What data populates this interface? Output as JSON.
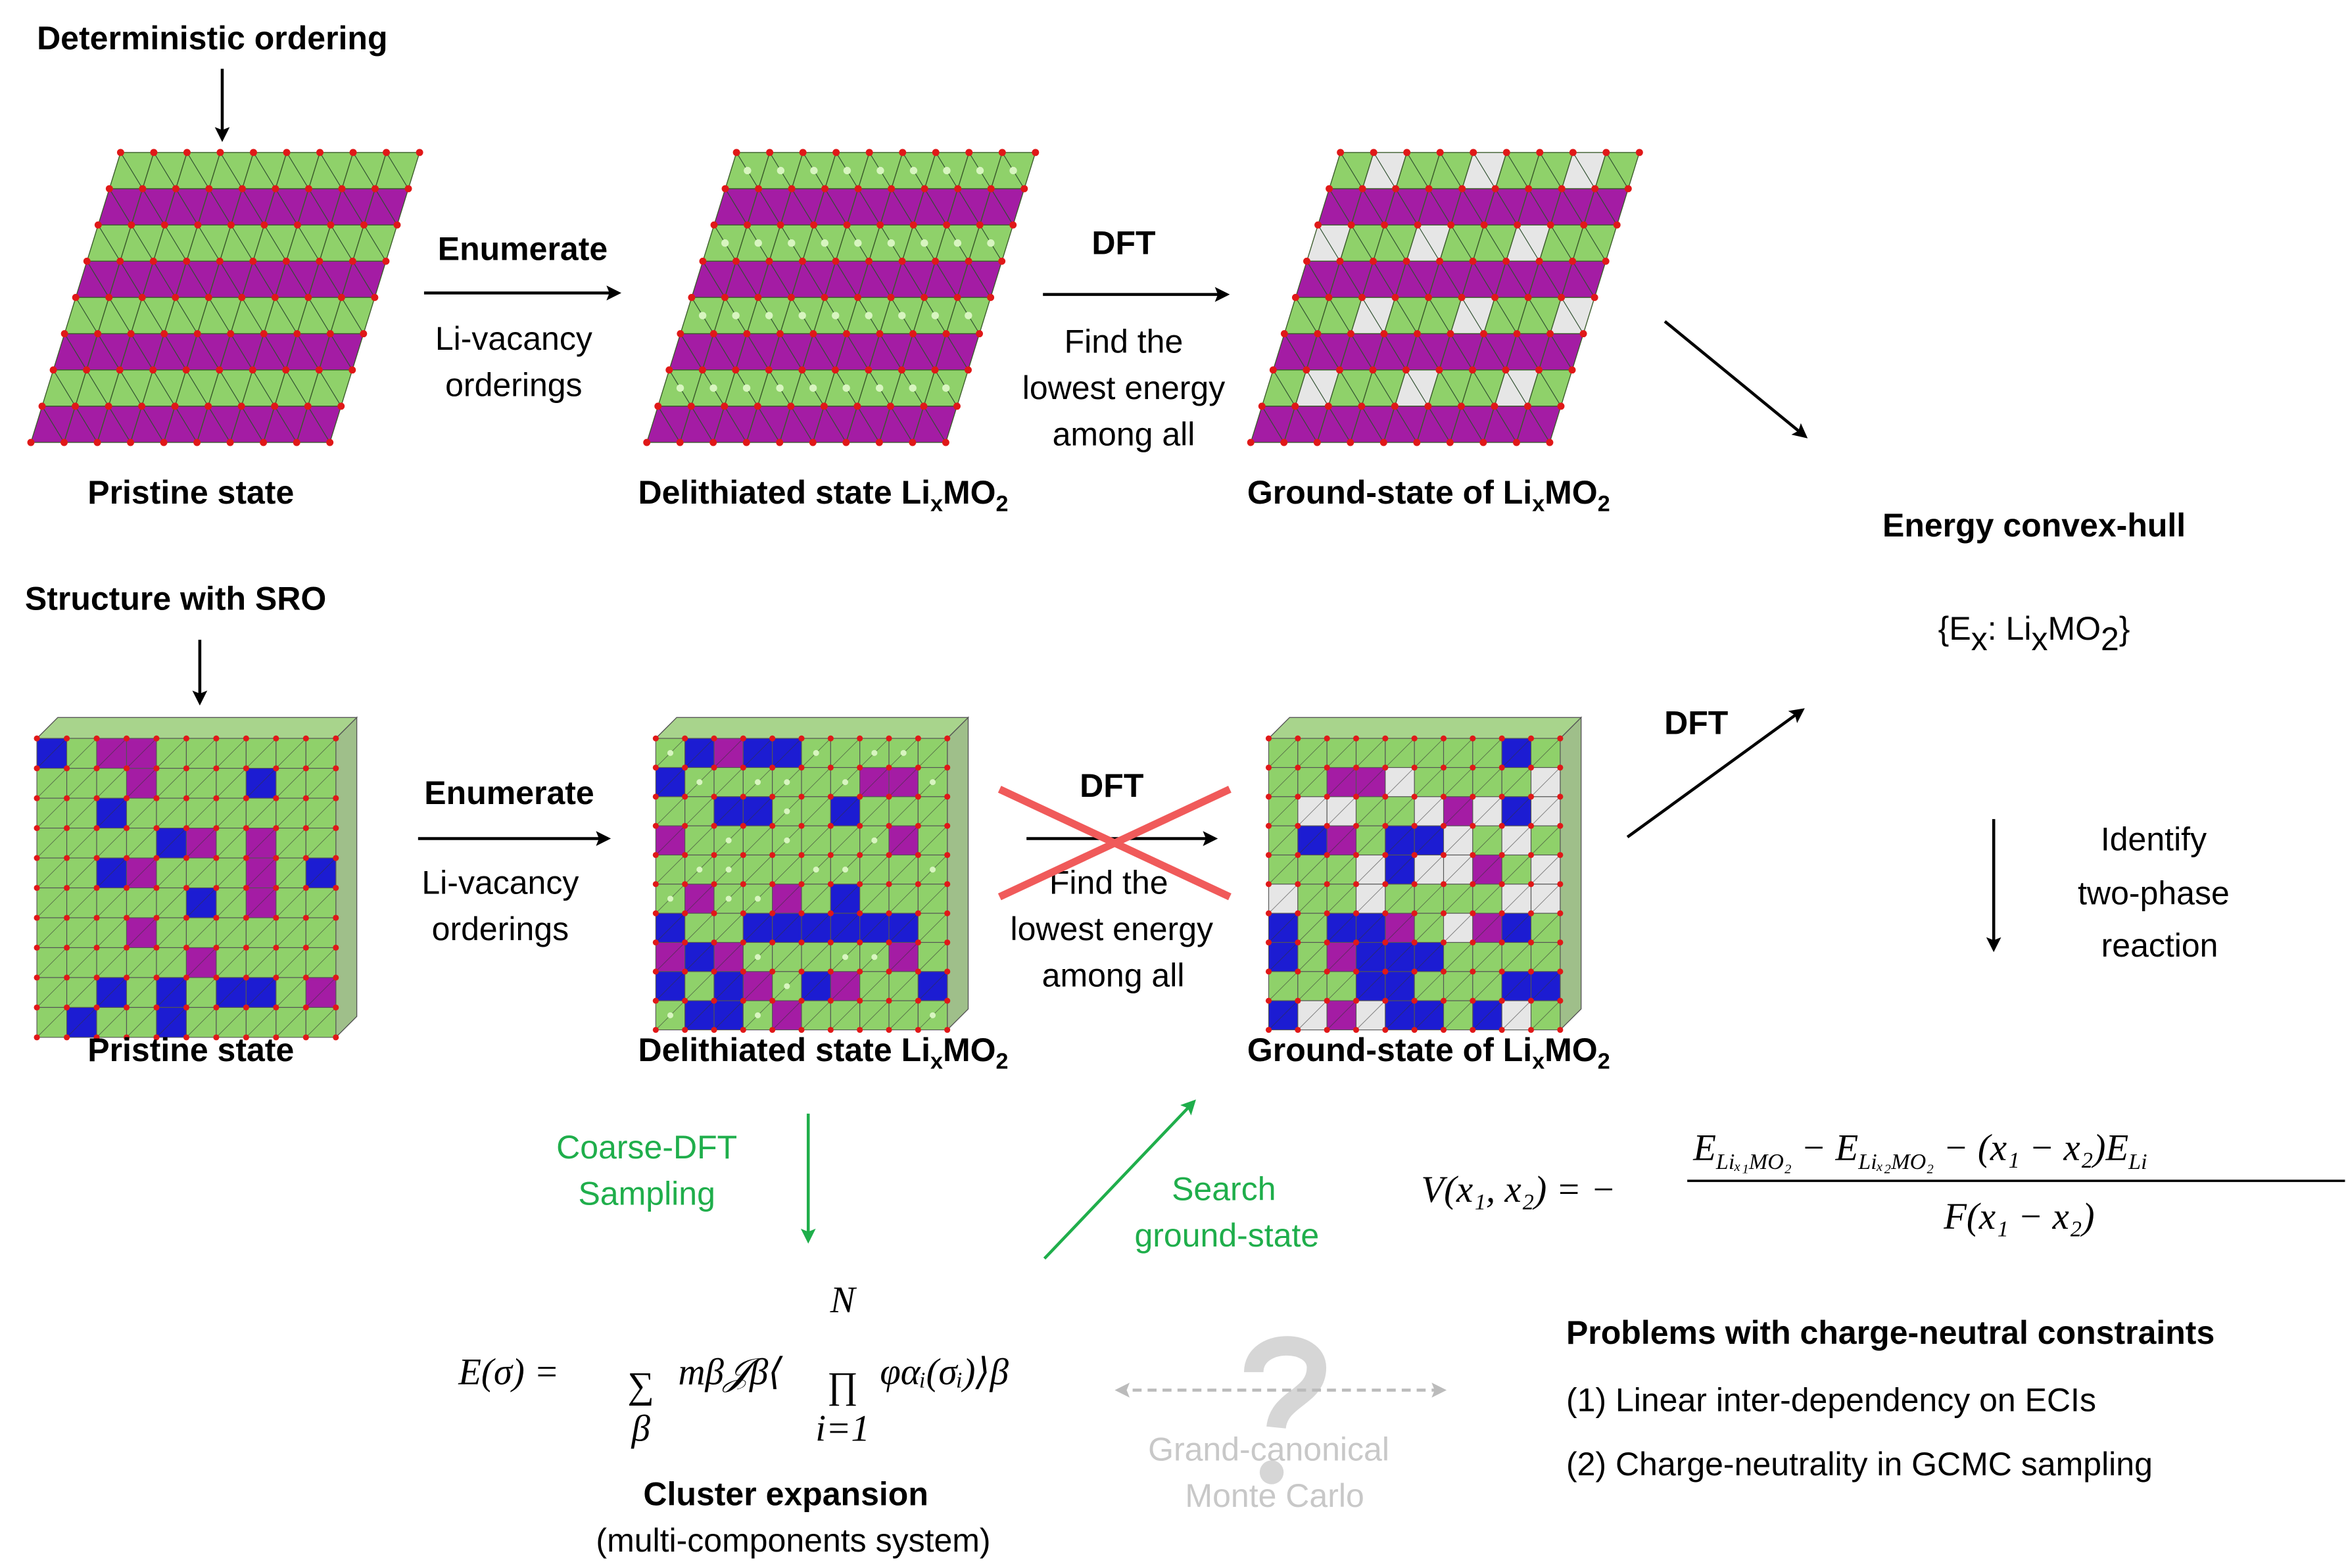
{
  "top_row": {
    "heading": "Deterministic ordering",
    "enumerate": {
      "label": "Enumerate",
      "lines": [
        "Li-vacancy",
        "orderings"
      ]
    },
    "dft": {
      "label": "DFT",
      "lines": [
        "Find the",
        "lowest energy",
        "among all"
      ]
    },
    "captions": {
      "pristine": "Pristine state",
      "delithiated": [
        "Delithiated state Li",
        "x",
        "MO",
        "2"
      ],
      "ground": [
        "Ground-state of Li",
        "x",
        "MO",
        "2"
      ]
    }
  },
  "bottom_row": {
    "heading": "Structure with SRO",
    "enumerate": {
      "label": "Enumerate",
      "lines": [
        "Li-vacancy",
        "orderings"
      ]
    },
    "dft": {
      "label": "DFT",
      "lines": [
        "Find the",
        "lowest energy",
        "among all"
      ]
    },
    "captions": {
      "pristine": "Pristine state",
      "delithiated": [
        "Delithiated state Li",
        "x",
        "MO",
        "2"
      ],
      "ground": [
        "Ground-state of Li",
        "x",
        "MO",
        "2"
      ]
    }
  },
  "convex_hull": {
    "title": "Energy convex-hull",
    "formula": [
      "{E",
      "x",
      ": Li",
      "x",
      "MO",
      "2",
      "}"
    ],
    "dft_label": "DFT",
    "identify_lines": [
      "Identify",
      "two-phase",
      "reaction"
    ]
  },
  "voltage": {
    "lhs": "V(x₁, x₂) = −",
    "numerator": [
      "E",
      "Liₓ₁MO₂",
      " − E",
      "Liₓ₂MO₂",
      " − (x₁ − x₂)E",
      "Li"
    ],
    "denominator": "F(x₁ − x₂)"
  },
  "cluster": {
    "coarse_lines": [
      "Coarse-DFT",
      "Sampling"
    ],
    "search_lines": [
      "Search",
      "ground-state"
    ],
    "equation": {
      "lhs": "E(σ) =",
      "sum_symbol": "∑",
      "sum_index": "β",
      "term": "mβ𝒥β⟨",
      "prod_symbol": "∏",
      "prod_upper": "N",
      "prod_lower": "i=1",
      "product_term": "φαᵢ(σᵢ)⟩β"
    },
    "title": "Cluster expansion",
    "subtitle": "(multi-components system)"
  },
  "gcmc": {
    "lines": [
      "Grand-canonical",
      "Monte Carlo"
    ]
  },
  "problems": {
    "title": "Problems with charge-neutral constraints",
    "items": [
      "(1) Linear inter-dependency on ECIs",
      "(2) Charge-neutrality in GCMC sampling"
    ]
  }
}
